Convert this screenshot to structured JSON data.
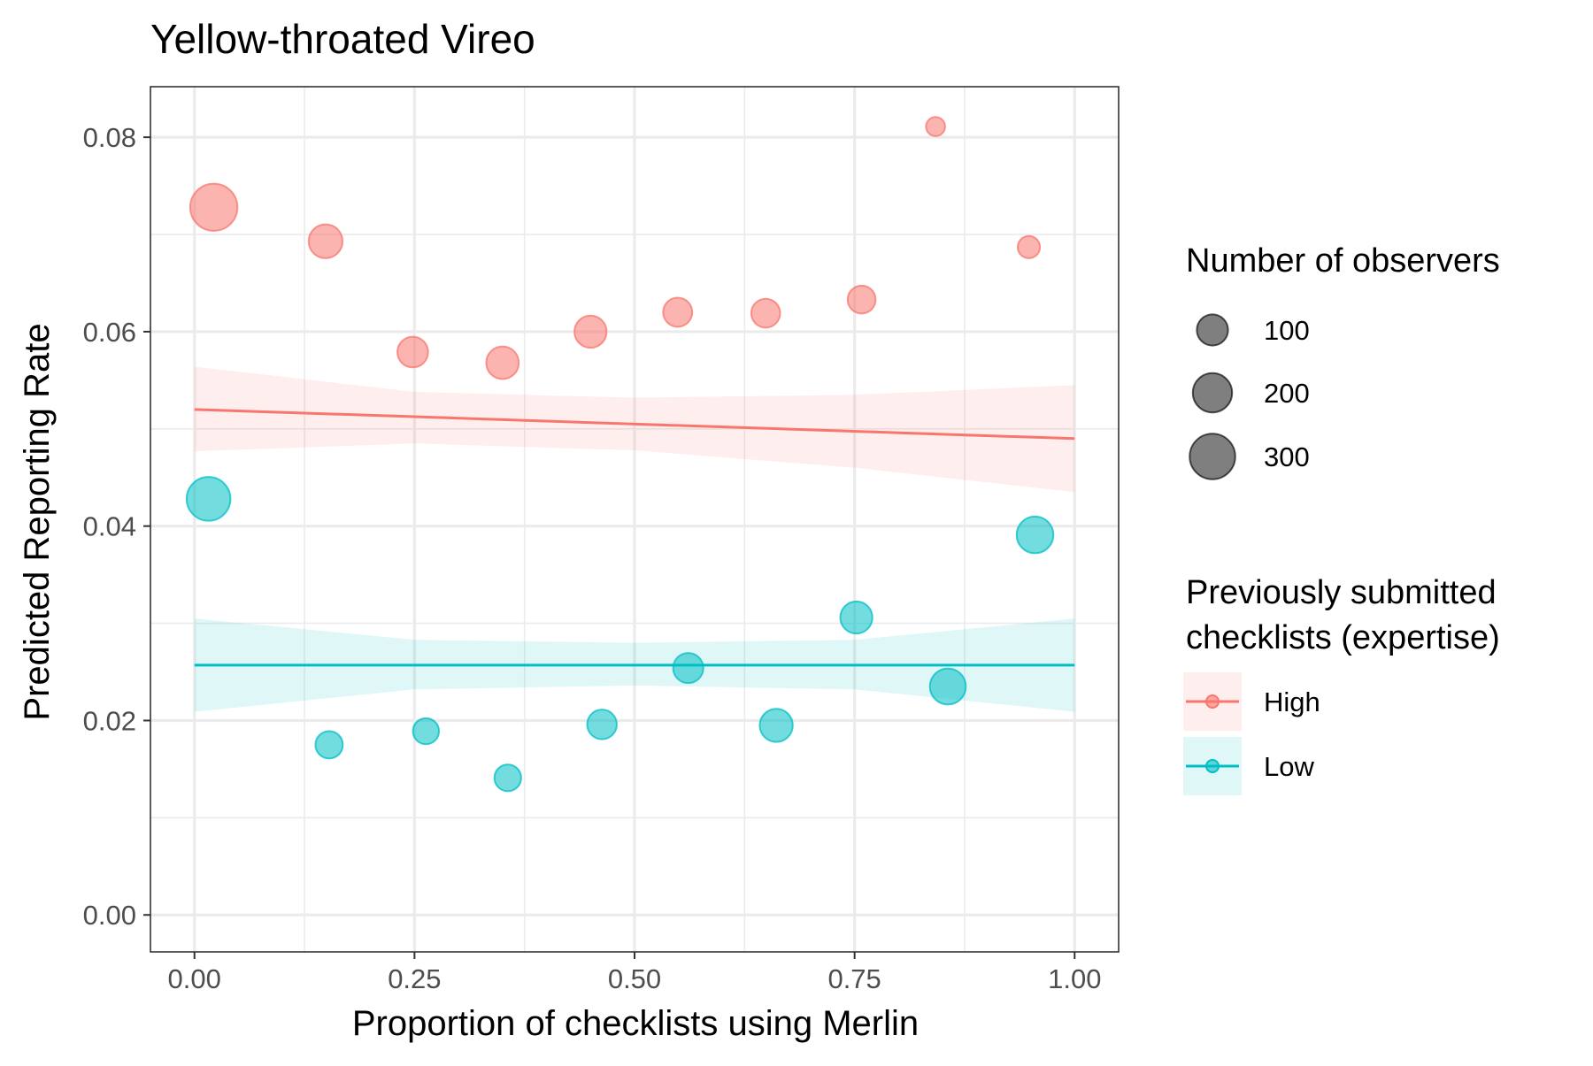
{
  "chart_data": {
    "type": "scatter",
    "title": "Yellow-throated Vireo",
    "xlabel": "Proportion of checklists using Merlin",
    "ylabel": "Predicted Reporting Rate",
    "xlim": [
      -0.05,
      1.05
    ],
    "ylim": [
      -0.0038,
      0.0852
    ],
    "x_ticks": [
      0,
      0.25,
      0.5,
      0.75,
      1
    ],
    "x_tick_labels": [
      "0.00",
      "0.25",
      "0.50",
      "0.75",
      "1.00"
    ],
    "y_ticks": [
      0,
      0.02,
      0.04,
      0.06,
      0.08
    ],
    "y_tick_labels": [
      "0.00",
      "0.02",
      "0.04",
      "0.06",
      "0.08"
    ],
    "grid": true,
    "legend_position": "right",
    "size_legend": {
      "title": "Number of observers",
      "entries": [
        {
          "label": "100",
          "value": 100
        },
        {
          "label": "200",
          "value": 200
        },
        {
          "label": "300",
          "value": 300
        }
      ]
    },
    "color_legend": {
      "title_lines": [
        "Previously submitted",
        "checklists (expertise)"
      ]
    },
    "series": [
      {
        "name": "High",
        "color": "#F8766D",
        "points": [
          {
            "x": 0.022,
            "y": 0.0728,
            "n": 330
          },
          {
            "x": 0.149,
            "y": 0.0693,
            "n": 130
          },
          {
            "x": 0.248,
            "y": 0.0579,
            "n": 95
          },
          {
            "x": 0.35,
            "y": 0.0568,
            "n": 115
          },
          {
            "x": 0.45,
            "y": 0.06,
            "n": 110
          },
          {
            "x": 0.549,
            "y": 0.062,
            "n": 80
          },
          {
            "x": 0.649,
            "y": 0.0619,
            "n": 78
          },
          {
            "x": 0.758,
            "y": 0.0633,
            "n": 70
          },
          {
            "x": 0.842,
            "y": 0.0811,
            "n": 15
          },
          {
            "x": 0.948,
            "y": 0.0687,
            "n": 30
          }
        ],
        "fit": {
          "x": [
            0,
            1
          ],
          "y": [
            0.052,
            0.049
          ]
        },
        "band": {
          "x": [
            0,
            0.25,
            0.5,
            0.75,
            1
          ],
          "lower": [
            0.0477,
            0.0485,
            0.0478,
            0.046,
            0.0435
          ],
          "upper": [
            0.0564,
            0.0538,
            0.0532,
            0.0535,
            0.0545
          ]
        }
      },
      {
        "name": "Low",
        "color": "#00BFC4",
        "points": [
          {
            "x": 0.016,
            "y": 0.0428,
            "n": 270
          },
          {
            "x": 0.153,
            "y": 0.0175,
            "n": 65
          },
          {
            "x": 0.263,
            "y": 0.0189,
            "n": 55
          },
          {
            "x": 0.356,
            "y": 0.0141,
            "n": 60
          },
          {
            "x": 0.463,
            "y": 0.0196,
            "n": 85
          },
          {
            "x": 0.561,
            "y": 0.0254,
            "n": 90
          },
          {
            "x": 0.661,
            "y": 0.0195,
            "n": 120
          },
          {
            "x": 0.752,
            "y": 0.0306,
            "n": 110
          },
          {
            "x": 0.856,
            "y": 0.0235,
            "n": 155
          },
          {
            "x": 0.955,
            "y": 0.0391,
            "n": 165
          }
        ],
        "fit": {
          "x": [
            0,
            1
          ],
          "y": [
            0.0257,
            0.0257
          ]
        },
        "band": {
          "x": [
            0,
            0.25,
            0.5,
            0.75,
            1
          ],
          "lower": [
            0.0209,
            0.0232,
            0.0236,
            0.0232,
            0.0209
          ],
          "upper": [
            0.0305,
            0.0283,
            0.028,
            0.0283,
            0.0305
          ]
        }
      }
    ]
  }
}
